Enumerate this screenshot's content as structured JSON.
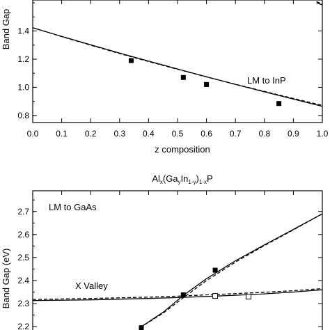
{
  "chart_data": [
    {
      "type": "line",
      "annotation": "LM to InP",
      "xlabel": "z composition",
      "ylabel": "Band Gap",
      "xlim": [
        0.0,
        1.0
      ],
      "ylim": [
        0.75,
        1.62
      ],
      "x_ticks": [
        "0.0",
        "0.1",
        "0.2",
        "0.3",
        "0.4",
        "0.5",
        "0.6",
        "0.7",
        "0.8",
        "0.9",
        "1.0"
      ],
      "x_tick_values": [
        0,
        0.1,
        0.2,
        0.3,
        0.4,
        0.5,
        0.6,
        0.7,
        0.8,
        0.9,
        1.0
      ],
      "y_ticks": [
        "0.8",
        "1.0",
        "1.2",
        "1.4"
      ],
      "y_tick_values": [
        0.8,
        1.0,
        1.2,
        1.4
      ],
      "series": [
        {
          "style": "solid",
          "x": [
            0,
            0.1,
            0.2,
            0.3,
            0.4,
            0.5,
            0.6,
            0.7,
            0.8,
            0.9,
            1.0
          ],
          "y": [
            1.423,
            1.362,
            1.302,
            1.243,
            1.186,
            1.13,
            1.075,
            1.021,
            0.968,
            0.916,
            0.865
          ]
        },
        {
          "style": "dashed",
          "x": [
            0,
            0.1,
            0.2,
            0.3,
            0.4,
            0.5,
            0.6,
            0.7,
            0.8,
            0.9,
            1.0
          ],
          "y": [
            1.424,
            1.36,
            1.299,
            1.24,
            1.183,
            1.128,
            1.074,
            1.022,
            0.971,
            0.921,
            0.872
          ]
        },
        {
          "style": "solid",
          "x": [
            0.98,
            1.0
          ],
          "y": [
            1.6,
            1.585
          ]
        },
        {
          "style": "dashed",
          "x": [
            0.98,
            1.0
          ],
          "y": [
            1.608,
            1.592
          ]
        }
      ],
      "points": {
        "marker": "filled-square",
        "x": [
          0.34,
          0.52,
          0.6,
          0.85
        ],
        "y": [
          1.19,
          1.07,
          1.02,
          0.885
        ]
      }
    },
    {
      "type": "line",
      "title": "Al",
      "title_sub_x": "x",
      "title_mid": "(Ga",
      "title_sub_y": "y",
      "title_in": "In",
      "title_sub_1y": "1-y",
      "title_close": ")",
      "title_sub_1x": "1-x",
      "title_end": "P",
      "annotation": "LM to GaAs",
      "annotation2": "X Valley",
      "ylabel": "Band Gap (eV)",
      "xlim": [
        0.0,
        1.0
      ],
      "ylim": [
        2.17,
        2.79
      ],
      "y_ticks": [
        "2.2",
        "2.3",
        "2.4",
        "2.5",
        "2.6",
        "2.7"
      ],
      "y_tick_values": [
        2.2,
        2.3,
        2.4,
        2.5,
        2.6,
        2.7
      ],
      "series": [
        {
          "style": "solid",
          "x": [
            0.0,
            0.2,
            0.4,
            0.5,
            0.6,
            0.7,
            0.8,
            0.9,
            1.0
          ],
          "y": [
            2.313,
            2.316,
            2.322,
            2.326,
            2.331,
            2.336,
            2.342,
            2.35,
            2.36
          ]
        },
        {
          "style": "dashed",
          "x": [
            0.0,
            0.2,
            0.4,
            0.5,
            0.6,
            0.7,
            0.8,
            0.9,
            1.0
          ],
          "y": [
            2.318,
            2.322,
            2.328,
            2.332,
            2.338,
            2.343,
            2.349,
            2.356,
            2.365
          ]
        },
        {
          "style": "solid",
          "x": [
            0.37,
            0.45,
            0.52,
            0.6,
            0.7,
            0.8,
            0.9,
            1.0
          ],
          "y": [
            2.195,
            2.262,
            2.335,
            2.408,
            2.486,
            2.555,
            2.622,
            2.69
          ]
        },
        {
          "style": "dashed",
          "x": [
            0.37,
            0.45,
            0.52,
            0.6,
            0.7,
            0.8,
            0.9,
            1.0
          ],
          "y": [
            2.195,
            2.258,
            2.325,
            2.4,
            2.48,
            2.552,
            2.62,
            2.69
          ]
        }
      ],
      "points": {
        "marker": "filled-square",
        "x": [
          0.375,
          0.52,
          0.63
        ],
        "y": [
          2.195,
          2.338,
          2.445
        ]
      },
      "open_points": {
        "marker": "open-square",
        "x": [
          0.63,
          0.745
        ],
        "y": [
          2.333,
          2.33
        ]
      }
    }
  ]
}
